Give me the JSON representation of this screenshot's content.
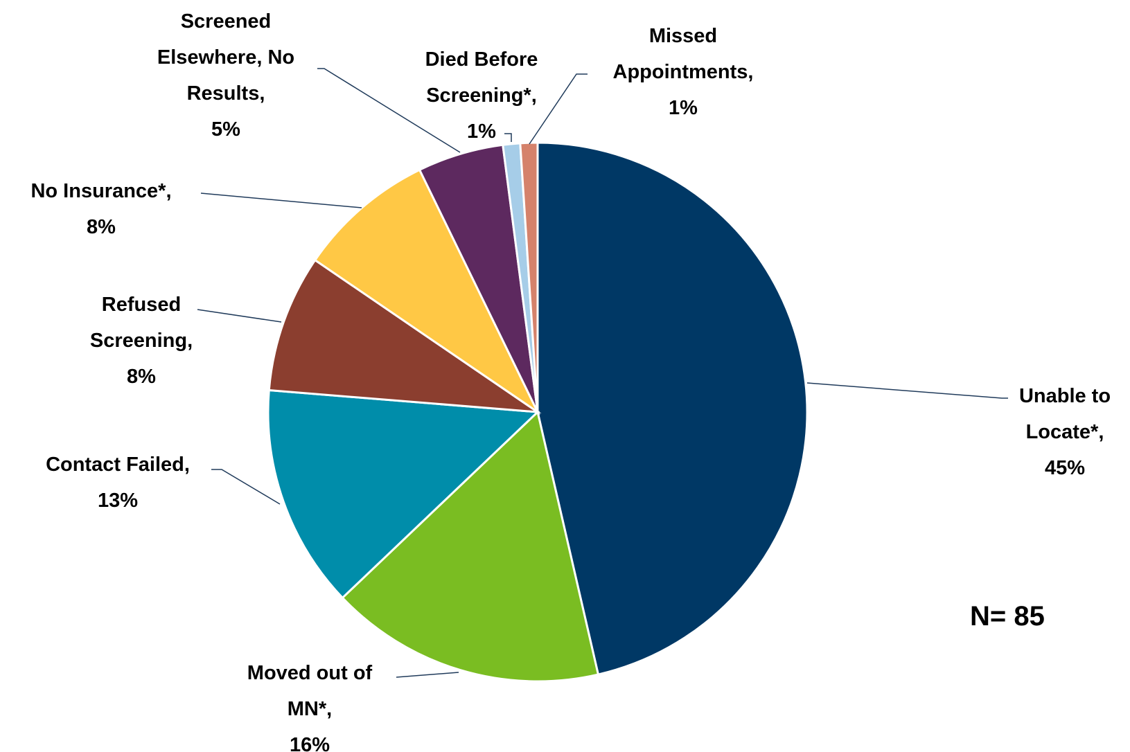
{
  "chart_data": {
    "type": "pie",
    "categories": [
      "Unable to Locate*,",
      "Moved out of MN*,",
      "Contact Failed,",
      "Refused Screening,",
      "No Insurance*,",
      "Screened Elsewhere, No Results,",
      "Died Before Screening*,",
      "Missed Appointments,"
    ],
    "values": [
      45,
      16,
      13,
      8,
      8,
      5,
      1,
      1
    ],
    "value_labels": [
      "45%",
      "16%",
      "13%",
      "8%",
      "8%",
      "5%",
      "1%",
      "1%"
    ],
    "colors": [
      "#003865",
      "#7abd22",
      "#008daa",
      "#8b3e2f",
      "#ffc845",
      "#5d295f",
      "#a6cde8",
      "#d5826b"
    ],
    "annotation": "N= 85"
  }
}
